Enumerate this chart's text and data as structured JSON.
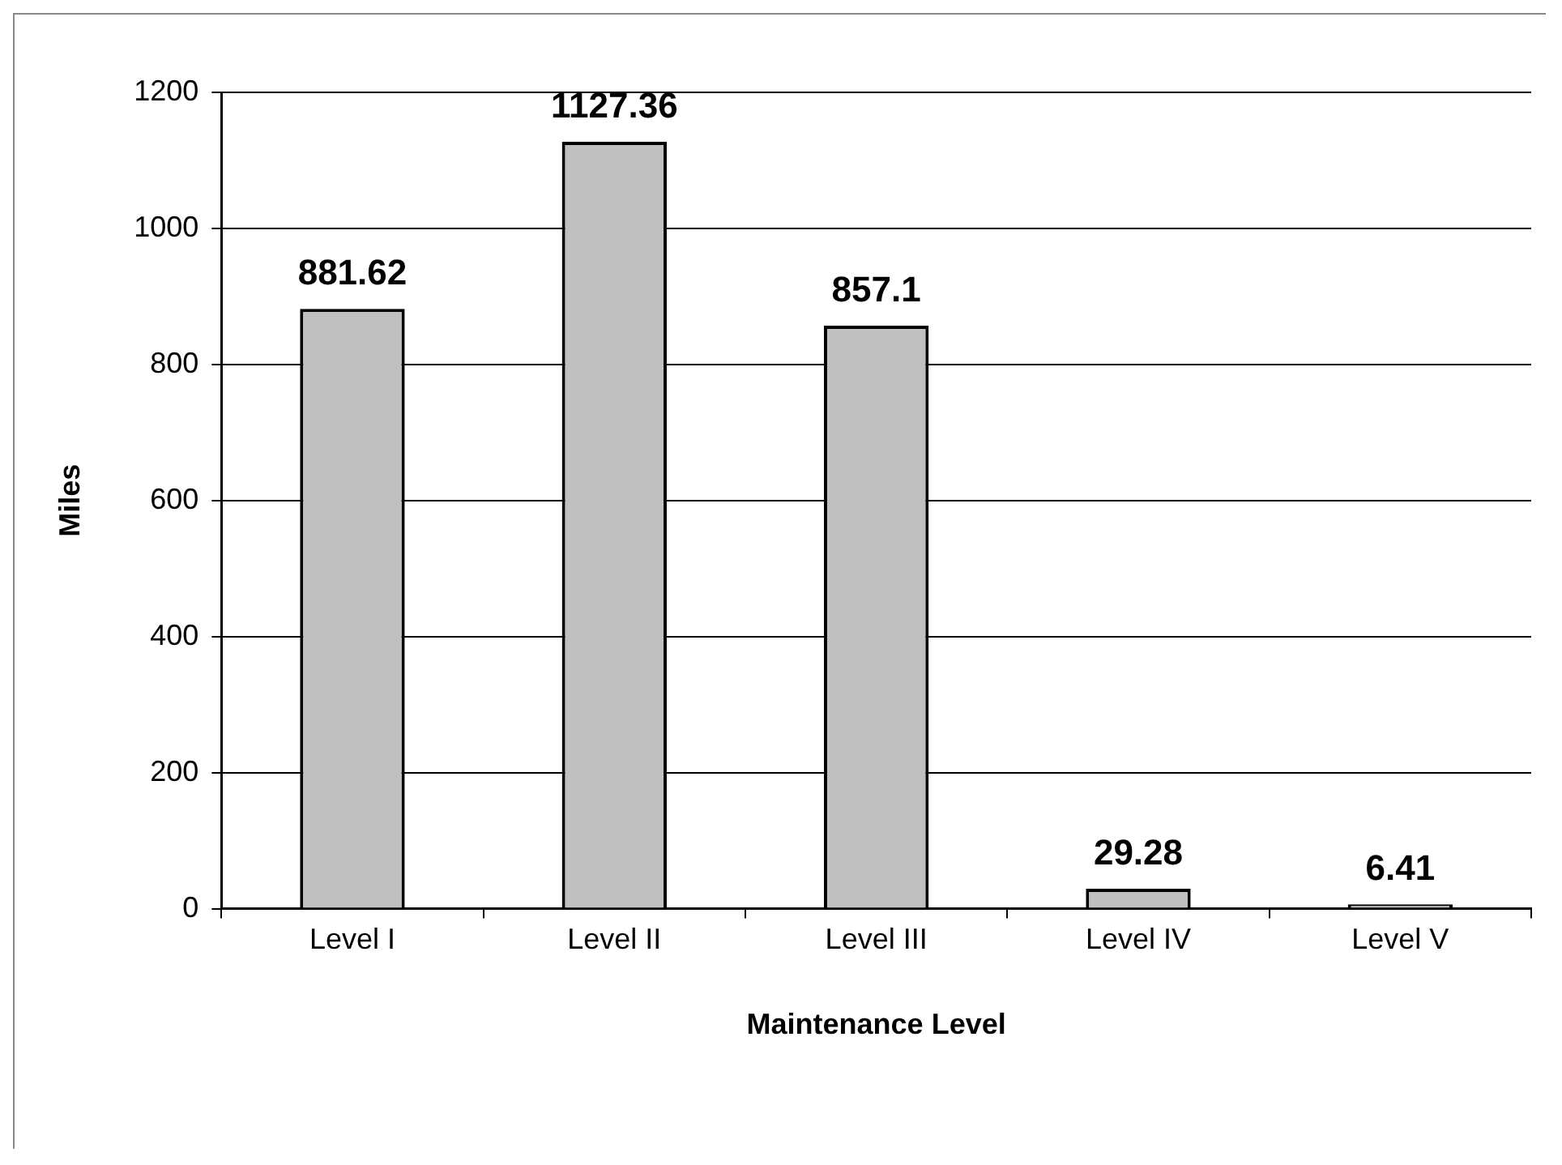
{
  "chart_data": {
    "type": "bar",
    "xlabel": "Maintenance Level",
    "ylabel": "Miles",
    "categories": [
      "Level I",
      "Level II",
      "Level III",
      "Level IV",
      "Level V"
    ],
    "values": [
      881.62,
      1127.36,
      857.1,
      29.28,
      6.41
    ],
    "color": "#c0c0c0",
    "ylim": [
      0,
      1200
    ],
    "yticks": [
      0,
      200,
      400,
      600,
      800,
      1000,
      1200
    ],
    "grid": "y",
    "data_labels": true,
    "legend": false
  }
}
